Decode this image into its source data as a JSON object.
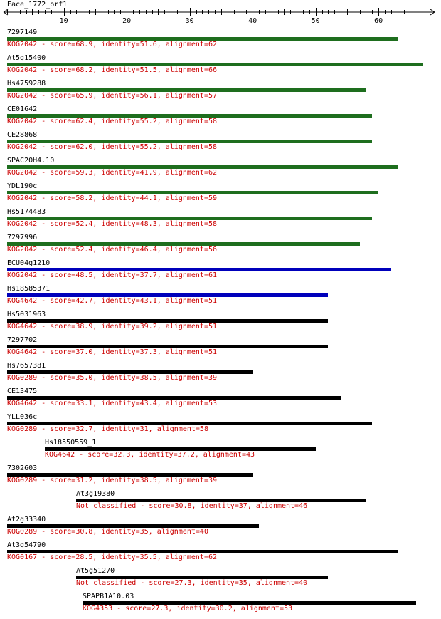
{
  "query": {
    "name": "Eace_1772_orf1"
  },
  "ruler": {
    "min": 1,
    "max": 64,
    "tick_labels": [
      "10",
      "20",
      "30",
      "40",
      "50",
      "60"
    ]
  },
  "colors": {
    "green": "#1e6e1e",
    "blue": "#0000bb",
    "black": "#000000",
    "annotation": "#cc0000"
  },
  "hits": [
    {
      "name": "7297149",
      "start": 1,
      "end": 63,
      "color": "green",
      "label": "KOG2042 - score=68.9, identity=51.6, alignment=62"
    },
    {
      "name": "At5g15400",
      "start": 1,
      "end": 67,
      "color": "green",
      "label": "KOG2042 - score=68.2, identity=51.5, alignment=66"
    },
    {
      "name": "Hs4759288",
      "start": 1,
      "end": 58,
      "color": "green",
      "label": "KOG2042 - score=65.9, identity=56.1, alignment=57"
    },
    {
      "name": "CE01642",
      "start": 1,
      "end": 59,
      "color": "green",
      "label": "KOG2042 - score=62.4, identity=55.2, alignment=58"
    },
    {
      "name": "CE28868",
      "start": 1,
      "end": 59,
      "color": "green",
      "label": "KOG2042 - score=62.0, identity=55.2, alignment=58"
    },
    {
      "name": "SPAC20H4.10",
      "start": 1,
      "end": 63,
      "color": "green",
      "label": "KOG2042 - score=59.3, identity=41.9, alignment=62"
    },
    {
      "name": "YDL190c",
      "start": 1,
      "end": 60,
      "color": "green",
      "label": "KOG2042 - score=58.2, identity=44.1, alignment=59"
    },
    {
      "name": "Hs5174483",
      "start": 1,
      "end": 59,
      "color": "green",
      "label": "KOG2042 - score=52.4, identity=48.3, alignment=58"
    },
    {
      "name": "7297996",
      "start": 1,
      "end": 57,
      "color": "green",
      "label": "KOG2042 - score=52.4, identity=46.4, alignment=56"
    },
    {
      "name": "ECU04g1210",
      "start": 1,
      "end": 62,
      "color": "blue",
      "label": "KOG2042 - score=48.5, identity=37.7, alignment=61"
    },
    {
      "name": "Hs18585371",
      "start": 1,
      "end": 52,
      "color": "blue",
      "label": "KOG4642 - score=42.7, identity=43.1, alignment=51"
    },
    {
      "name": "Hs5031963",
      "start": 1,
      "end": 52,
      "color": "black",
      "label": "KOG4642 - score=38.9, identity=39.2, alignment=51"
    },
    {
      "name": "7297702",
      "start": 1,
      "end": 52,
      "color": "black",
      "label": "KOG4642 - score=37.0, identity=37.3, alignment=51"
    },
    {
      "name": "Hs7657381",
      "start": 1,
      "end": 40,
      "color": "black",
      "label": "KOG0289 - score=35.0, identity=38.5, alignment=39"
    },
    {
      "name": "CE13475",
      "start": 1,
      "end": 54,
      "color": "black",
      "label": "KOG4642 - score=33.1, identity=43.4, alignment=53"
    },
    {
      "name": "YLL036c",
      "start": 1,
      "end": 59,
      "color": "black",
      "label": "KOG0289 - score=32.7, identity=31, alignment=58"
    },
    {
      "name": "Hs18550559_1",
      "start": 7,
      "end": 50,
      "color": "black",
      "label": "KOG4642 - score=32.3, identity=37.2, alignment=43"
    },
    {
      "name": "7302603",
      "start": 1,
      "end": 40,
      "color": "black",
      "label": "KOG0289 - score=31.2, identity=38.5, alignment=39"
    },
    {
      "name": "At3g19380",
      "start": 12,
      "end": 58,
      "color": "black",
      "label": "Not classified - score=30.8, identity=37, alignment=46"
    },
    {
      "name": "At2g33340",
      "start": 1,
      "end": 41,
      "color": "black",
      "label": "KOG0289 - score=30.8, identity=35, alignment=40"
    },
    {
      "name": "At3g54790",
      "start": 1,
      "end": 63,
      "color": "black",
      "label": "KOG0167 - score=28.5, identity=35.5, alignment=62"
    },
    {
      "name": "At5g51270",
      "start": 12,
      "end": 52,
      "color": "black",
      "label": "Not classified - score=27.3, identity=35, alignment=40"
    },
    {
      "name": "SPAPB1A10.03",
      "start": 13,
      "end": 66,
      "color": "black",
      "label": "KOG4353 - score=27.3, identity=30.2, alignment=53"
    }
  ]
}
